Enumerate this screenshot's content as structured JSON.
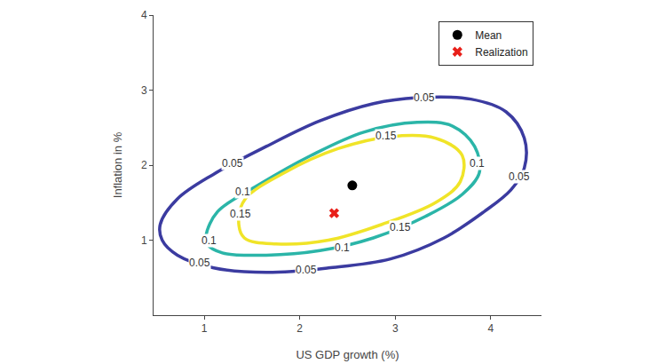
{
  "chart_data": {
    "type": "contour",
    "x_label": "US GDP growth (%)",
    "y_label": "Inflation in %",
    "xlim": [
      0.47,
      4.53
    ],
    "ylim": [
      0,
      4
    ],
    "xticks": [
      1,
      2,
      3,
      4
    ],
    "yticks": [
      1,
      2,
      3,
      4
    ],
    "grid": false,
    "legend": "upper right",
    "contours": [
      {
        "level": 0.05,
        "color": "#3b3ba0",
        "x": [
          0.54,
          0.72,
          1.1,
          1.65,
          2.21,
          2.77,
          3.23,
          3.79,
          4.16,
          4.35,
          4.35,
          4.21,
          3.93,
          3.51,
          2.95,
          2.3,
          1.65,
          1.1,
          0.72,
          0.56
        ],
        "y": [
          1.21,
          1.55,
          1.88,
          2.25,
          2.59,
          2.82,
          2.9,
          2.88,
          2.71,
          2.36,
          1.96,
          1.67,
          1.38,
          1.03,
          0.75,
          0.63,
          0.57,
          0.63,
          0.8,
          1.0
        ],
        "label_x": [
          3.3,
          4.3,
          1.3,
          0.95,
          2.07
        ],
        "label_y": [
          2.9,
          1.85,
          2.02,
          0.7,
          0.6
        ]
      },
      {
        "level": 0.1,
        "color": "#2bb5a8",
        "x": [
          1.02,
          1.14,
          1.56,
          2.12,
          2.67,
          3.23,
          3.6,
          3.83,
          3.88,
          3.7,
          3.32,
          2.77,
          2.21,
          1.65,
          1.19,
          1.03
        ],
        "y": [
          1.07,
          1.38,
          1.73,
          2.13,
          2.44,
          2.57,
          2.52,
          2.25,
          1.9,
          1.61,
          1.32,
          1.03,
          0.86,
          0.8,
          0.83,
          0.95
        ],
        "label_x": [
          1.4,
          3.86,
          1.05,
          2.44
        ],
        "label_y": [
          1.65,
          2.02,
          1.0,
          0.9
        ]
      },
      {
        "level": 0.15,
        "color": "#f0e428",
        "x": [
          1.36,
          1.43,
          1.84,
          2.4,
          2.95,
          3.42,
          3.7,
          3.68,
          3.42,
          2.86,
          2.3,
          1.75,
          1.42
        ],
        "y": [
          1.27,
          1.55,
          1.9,
          2.22,
          2.38,
          2.36,
          2.13,
          1.78,
          1.5,
          1.21,
          1.0,
          0.95,
          1.03
        ],
        "label_x": [
          2.9,
          1.38,
          3.05
        ],
        "label_y": [
          2.39,
          1.35,
          1.17
        ]
      }
    ],
    "points": [
      {
        "name": "Mean",
        "x": 2.55,
        "y": 1.73,
        "color": "#000000",
        "marker": "circle"
      },
      {
        "name": "Realization",
        "x": 2.36,
        "y": 1.36,
        "color": "#e8201a",
        "marker": "x"
      }
    ]
  }
}
